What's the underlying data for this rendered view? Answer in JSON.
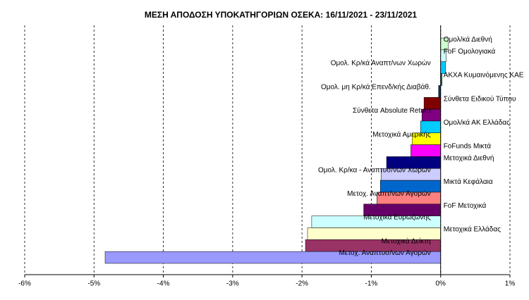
{
  "chart_data": {
    "type": "barh",
    "title": "ΜΕΣΗ ΑΠΟΔΟΣΗ ΥΠΟΚΑΤΗΓΟΡΙΩΝ ΟΣΕΚΑ: 16/11/2021 - 23/11/2021",
    "categories": [
      "Ομολ/κά Διεθνή",
      "FoF Ομολογιακά",
      "Ομολ. Κρ/κά Αναπτ/νων Χωρών",
      "ΑΚΧΑ Κυμαινόμενης ΚΑΕ",
      "Ομολ. μη Κρ/κά Επενδ/κής Διαβάθ.",
      "Σύνθετα Ειδικού Τύπου",
      "Σύνθετα Absolute Return",
      "Ομολ/κά ΑΚ Ελλάδας",
      "Μετοχικά Αμερικής",
      "FoFunds Μικτά",
      "Μετοχικά Διεθνή",
      "Ομολ. Κρ/κα - Αναπτυσ/νων Χωρών",
      "Μικτά Κεφάλαια",
      "Μετοχ. Αναπτ/νων Αγορών",
      "FoF Μετοχικά",
      "Μετοχικά Ευρωζώνης",
      "Μετοχικά Ελλάδας",
      "Μετοχικά Δείκτη",
      "Μετοχ. Αναπτυσ/νων Αγορών"
    ],
    "values": [
      0.11,
      0.08,
      0.07,
      0.02,
      -0.03,
      -0.24,
      -0.27,
      -0.29,
      -0.41,
      -0.43,
      -0.78,
      -0.86,
      -0.87,
      -0.92,
      -1.11,
      -1.86,
      -1.92,
      -1.95,
      -4.84
    ],
    "colors": [
      "#ccffcc",
      "#ccffff",
      "#00ccff",
      "#008080",
      "#003366",
      "#800000",
      "#800080",
      "#00ccff",
      "#ffff00",
      "#ff00ff",
      "#000080",
      "#ccccff",
      "#0066cc",
      "#ff8080",
      "#660066",
      "#ccffff",
      "#ffffcc",
      "#993366",
      "#9999ff"
    ],
    "xlim": [
      -6,
      1
    ],
    "xticks": [
      {
        "value": -6,
        "label": "-6%"
      },
      {
        "value": -5,
        "label": "-5%"
      },
      {
        "value": -4,
        "label": "-4%"
      },
      {
        "value": -3,
        "label": "-3%"
      },
      {
        "value": -2,
        "label": "-2%"
      },
      {
        "value": -1,
        "label": "-1%"
      },
      {
        "value": 0,
        "label": "0%"
      },
      {
        "value": 1,
        "label": "1%"
      }
    ],
    "grid": true
  }
}
